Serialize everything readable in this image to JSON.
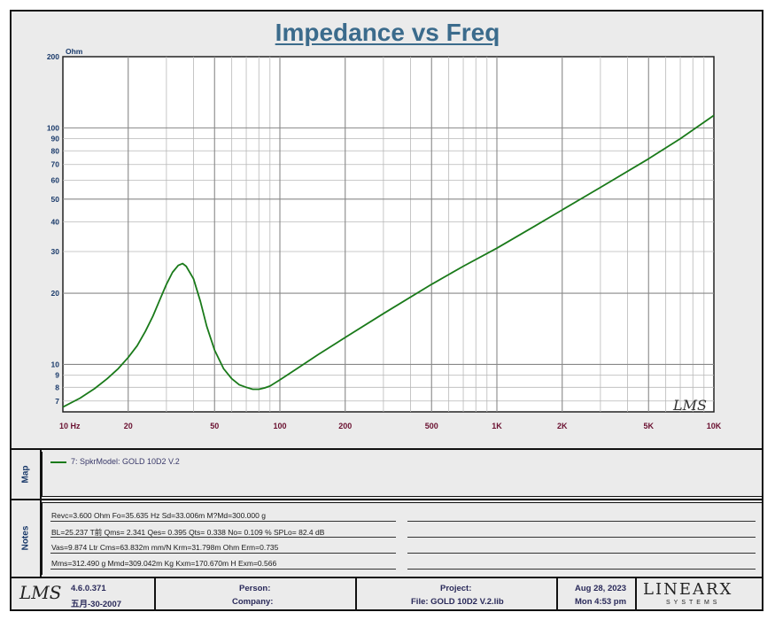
{
  "title": "Impedance vs Freq",
  "chart_data": {
    "type": "line",
    "title": "Impedance vs Freq",
    "ylabel": "Ohm",
    "xlabel": "",
    "x_scale": "log",
    "y_scale": "log",
    "xlim": [
      10,
      10000
    ],
    "ylim": [
      6.3,
      200
    ],
    "x_ticks": [
      {
        "value": 10,
        "label": "10  Hz"
      },
      {
        "value": 20,
        "label": "20"
      },
      {
        "value": 50,
        "label": "50"
      },
      {
        "value": 100,
        "label": "100"
      },
      {
        "value": 200,
        "label": "200"
      },
      {
        "value": 500,
        "label": "500"
      },
      {
        "value": 1000,
        "label": "1K"
      },
      {
        "value": 2000,
        "label": "2K"
      },
      {
        "value": 5000,
        "label": "5K"
      },
      {
        "value": 10000,
        "label": "10K"
      }
    ],
    "y_ticks": [
      {
        "value": 7,
        "label": "7"
      },
      {
        "value": 8,
        "label": "8"
      },
      {
        "value": 9,
        "label": "9"
      },
      {
        "value": 10,
        "label": "10"
      },
      {
        "value": 20,
        "label": "20"
      },
      {
        "value": 30,
        "label": "30"
      },
      {
        "value": 40,
        "label": "40"
      },
      {
        "value": 50,
        "label": "50"
      },
      {
        "value": 60,
        "label": "60"
      },
      {
        "value": 70,
        "label": "70"
      },
      {
        "value": 80,
        "label": "80"
      },
      {
        "value": 90,
        "label": "90"
      },
      {
        "value": 100,
        "label": "100"
      },
      {
        "value": 200,
        "label": "200"
      }
    ],
    "grid": true,
    "series": [
      {
        "name": "7: SpkrModel: GOLD  10D2 V.2",
        "color": "#1a7a1a",
        "x": [
          10,
          12,
          14,
          16,
          18,
          20,
          22,
          24,
          26,
          28,
          30,
          32,
          34,
          35.6,
          37,
          40,
          43,
          46,
          50,
          55,
          60,
          65,
          70,
          75,
          80,
          85,
          90,
          100,
          120,
          150,
          200,
          300,
          500,
          700,
          1000,
          1500,
          2000,
          3000,
          5000,
          7000,
          10000
        ],
        "values": [
          6.6,
          7.2,
          7.9,
          8.7,
          9.6,
          10.7,
          12.0,
          13.8,
          16.0,
          18.8,
          21.8,
          24.5,
          26.2,
          26.7,
          26.0,
          23.0,
          18.5,
          14.5,
          11.5,
          9.6,
          8.7,
          8.2,
          8.0,
          7.85,
          7.85,
          7.95,
          8.1,
          8.6,
          9.6,
          11.0,
          13.0,
          16.4,
          21.8,
          26.0,
          31.0,
          38.5,
          45.0,
          56.0,
          74.0,
          90.0,
          113.0
        ]
      }
    ]
  },
  "watermark": "LMS",
  "map": {
    "label": "Map",
    "legend": "7: SpkrModel: GOLD  10D2 V.2"
  },
  "notes": {
    "label": "Notes",
    "lines": [
      "Revc=3.600 Ohm  Fo=35.635 Hz  Sd=33.006m M?Md=300.000 g",
      "BL=25.237 T前  Qms= 2.341  Qes= 0.395  Qts= 0.338  No= 0.109 %  SPLo= 82.4 dB",
      "Vas=9.874 Ltr  Cms=63.832m mm/N  Krm=31.798m Ohm  Erm=0.735",
      "Mms=312.490 g  Mmd=309.042m Kg  Kxm=170.670m H  Exm=0.566"
    ]
  },
  "footer": {
    "logo": "LMS",
    "version": "4.6.0.371",
    "version_date": "五月-30-2007",
    "person_label": "Person:",
    "company_label": "Company:",
    "project_label": "Project:",
    "file_label": "File: GOLD  10D2 V.2.lib",
    "date": "Aug 28, 2023",
    "time": "Mon  4:53 pm",
    "brand": "LINEARX",
    "brand_sub": "SYSTEMS"
  }
}
